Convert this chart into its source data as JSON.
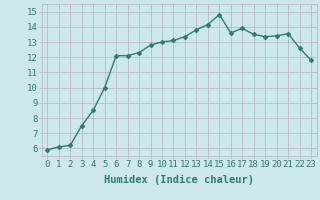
{
  "x": [
    0,
    1,
    2,
    3,
    4,
    5,
    6,
    7,
    8,
    9,
    10,
    11,
    12,
    13,
    14,
    15,
    16,
    17,
    18,
    19,
    20,
    21,
    22,
    23
  ],
  "y": [
    5.9,
    6.1,
    6.2,
    7.5,
    8.5,
    10.0,
    12.1,
    12.1,
    12.3,
    12.8,
    13.0,
    13.1,
    13.35,
    13.8,
    14.15,
    14.8,
    13.6,
    13.9,
    13.5,
    13.35,
    13.4,
    13.55,
    12.6,
    11.8
  ],
  "xlim": [
    -0.5,
    23.5
  ],
  "ylim": [
    5.5,
    15.5
  ],
  "yticks": [
    6,
    7,
    8,
    9,
    10,
    11,
    12,
    13,
    14,
    15
  ],
  "xticks": [
    0,
    1,
    2,
    3,
    4,
    5,
    6,
    7,
    8,
    9,
    10,
    11,
    12,
    13,
    14,
    15,
    16,
    17,
    18,
    19,
    20,
    21,
    22,
    23
  ],
  "xlabel": "Humidex (Indice chaleur)",
  "line_color": "#2e7d6e",
  "marker": "D",
  "marker_size": 2.0,
  "bg_color": "#cce8ea",
  "grid_color": "#b8afc0",
  "tick_color": "#2e7d6e",
  "xlabel_fontsize": 7.5,
  "tick_fontsize": 6.5,
  "line_width": 1.0
}
